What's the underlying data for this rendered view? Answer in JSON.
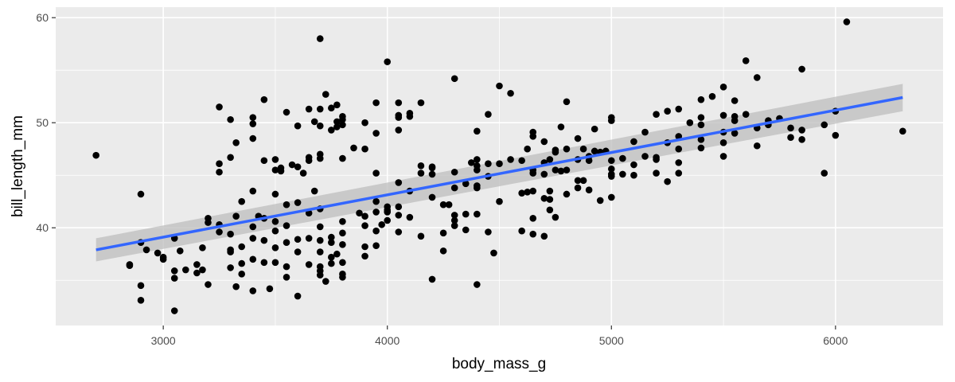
{
  "chart_data": {
    "type": "scatter",
    "title": "",
    "xlabel": "body_mass_g",
    "ylabel": "bill_length_mm",
    "xlim": [
      2520,
      6480
    ],
    "ylim": [
      30.7,
      61.0
    ],
    "x_ticks": [
      3000,
      4000,
      5000,
      6000
    ],
    "y_ticks": [
      40,
      50,
      60
    ],
    "x_tick_labels": [
      "3000",
      "4000",
      "5000",
      "6000"
    ],
    "y_tick_labels": [
      "40",
      "50",
      "60"
    ],
    "grid": true,
    "legend": "none",
    "colors": {
      "panel_background": "#ebebeb",
      "grid": "#ffffff",
      "points": "#000000",
      "fit_line": "#3366ff",
      "confidence_band": "#bdbdbd"
    },
    "fit": {
      "method": "linear",
      "x": [
        2700,
        6300
      ],
      "y": [
        37.9,
        52.4
      ],
      "band_lower": [
        36.8,
        51.1
      ],
      "band_upper": [
        39.0,
        53.7
      ]
    },
    "points": [
      [
        2700,
        46.9
      ],
      [
        2850,
        36.5
      ],
      [
        2850,
        36.4
      ],
      [
        2900,
        43.2
      ],
      [
        2900,
        38.6
      ],
      [
        2900,
        34.5
      ],
      [
        2900,
        33.1
      ],
      [
        2925,
        37.9
      ],
      [
        2975,
        37.6
      ],
      [
        3000,
        37.2
      ],
      [
        3000,
        37.0
      ],
      [
        3050,
        39.0
      ],
      [
        3050,
        35.9
      ],
      [
        3050,
        35.2
      ],
      [
        3050,
        32.1
      ],
      [
        3075,
        37.8
      ],
      [
        3100,
        36.0
      ],
      [
        3150,
        36.5
      ],
      [
        3150,
        35.7
      ],
      [
        3175,
        38.1
      ],
      [
        3175,
        36.0
      ],
      [
        3200,
        40.9
      ],
      [
        3200,
        40.5
      ],
      [
        3200,
        34.6
      ],
      [
        3250,
        51.5
      ],
      [
        3250,
        46.1
      ],
      [
        3250,
        45.3
      ],
      [
        3250,
        40.3
      ],
      [
        3250,
        39.6
      ],
      [
        3300,
        50.3
      ],
      [
        3300,
        46.7
      ],
      [
        3300,
        39.4
      ],
      [
        3300,
        37.7
      ],
      [
        3300,
        36.2
      ],
      [
        3300,
        37.9
      ],
      [
        3325,
        48.1
      ],
      [
        3325,
        41.1
      ],
      [
        3325,
        34.4
      ],
      [
        3350,
        42.5
      ],
      [
        3350,
        38.2
      ],
      [
        3350,
        35.6
      ],
      [
        3350,
        36.6
      ],
      [
        3400,
        50.5
      ],
      [
        3400,
        49.9
      ],
      [
        3400,
        48.5
      ],
      [
        3400,
        43.5
      ],
      [
        3400,
        40.1
      ],
      [
        3400,
        39.0
      ],
      [
        3400,
        37.0
      ],
      [
        3400,
        34.0
      ],
      [
        3425,
        41.1
      ],
      [
        3450,
        52.2
      ],
      [
        3450,
        46.4
      ],
      [
        3450,
        40.9
      ],
      [
        3450,
        38.8
      ],
      [
        3450,
        36.7
      ],
      [
        3475,
        34.2
      ],
      [
        3500,
        46.5
      ],
      [
        3500,
        45.5
      ],
      [
        3500,
        43.2
      ],
      [
        3500,
        40.6
      ],
      [
        3500,
        39.7
      ],
      [
        3500,
        38.1
      ],
      [
        3500,
        36.7
      ],
      [
        3525,
        45.4
      ],
      [
        3525,
        45.7
      ],
      [
        3550,
        51.0
      ],
      [
        3550,
        42.2
      ],
      [
        3550,
        40.2
      ],
      [
        3550,
        38.6
      ],
      [
        3550,
        36.3
      ],
      [
        3550,
        35.3
      ],
      [
        3575,
        46.0
      ],
      [
        3600,
        49.7
      ],
      [
        3600,
        45.8
      ],
      [
        3600,
        42.4
      ],
      [
        3600,
        38.9
      ],
      [
        3600,
        37.7
      ],
      [
        3600,
        33.5
      ],
      [
        3625,
        45.2
      ],
      [
        3650,
        51.3
      ],
      [
        3650,
        46.7
      ],
      [
        3650,
        46.4
      ],
      [
        3650,
        41.4
      ],
      [
        3650,
        39.0
      ],
      [
        3650,
        36.5
      ],
      [
        3675,
        50.1
      ],
      [
        3675,
        43.5
      ],
      [
        3700,
        58.0
      ],
      [
        3700,
        51.3
      ],
      [
        3700,
        49.7
      ],
      [
        3700,
        47.0
      ],
      [
        3700,
        46.6
      ],
      [
        3700,
        41.8
      ],
      [
        3700,
        40.1
      ],
      [
        3700,
        38.8
      ],
      [
        3700,
        37.7
      ],
      [
        3700,
        36.3
      ],
      [
        3700,
        35.9
      ],
      [
        3700,
        35.5
      ],
      [
        3725,
        52.7
      ],
      [
        3725,
        34.9
      ],
      [
        3750,
        51.4
      ],
      [
        3750,
        49.3
      ],
      [
        3750,
        39.1
      ],
      [
        3750,
        38.6
      ],
      [
        3750,
        37.2
      ],
      [
        3750,
        36.6
      ],
      [
        3775,
        51.7
      ],
      [
        3775,
        49.6
      ],
      [
        3775,
        50.1
      ],
      [
        3775,
        37.5
      ],
      [
        3800,
        50.3
      ],
      [
        3800,
        50.6
      ],
      [
        3800,
        49.8
      ],
      [
        3800,
        46.6
      ],
      [
        3800,
        40.6
      ],
      [
        3800,
        39.5
      ],
      [
        3800,
        38.4
      ],
      [
        3800,
        36.7
      ],
      [
        3800,
        35.6
      ],
      [
        3800,
        35.3
      ],
      [
        3850,
        47.6
      ],
      [
        3875,
        41.4
      ],
      [
        3900,
        50.0
      ],
      [
        3900,
        47.5
      ],
      [
        3900,
        41.1
      ],
      [
        3900,
        40.2
      ],
      [
        3900,
        38.2
      ],
      [
        3900,
        37.3
      ],
      [
        3950,
        51.9
      ],
      [
        3950,
        49.0
      ],
      [
        3950,
        45.2
      ],
      [
        3950,
        42.5
      ],
      [
        3950,
        41.5
      ],
      [
        3950,
        39.7
      ],
      [
        3950,
        38.3
      ],
      [
        3975,
        40.3
      ],
      [
        4000,
        55.8
      ],
      [
        4000,
        42.0
      ],
      [
        4000,
        41.7
      ],
      [
        4000,
        41.5
      ],
      [
        4000,
        40.7
      ],
      [
        4050,
        51.9
      ],
      [
        4050,
        50.7
      ],
      [
        4050,
        50.5
      ],
      [
        4050,
        49.3
      ],
      [
        4050,
        44.3
      ],
      [
        4050,
        42.0
      ],
      [
        4050,
        41.2
      ],
      [
        4050,
        39.6
      ],
      [
        4100,
        50.9
      ],
      [
        4100,
        50.6
      ],
      [
        4100,
        43.5
      ],
      [
        4100,
        41.0
      ],
      [
        4150,
        51.9
      ],
      [
        4150,
        45.9
      ],
      [
        4150,
        45.2
      ],
      [
        4150,
        39.2
      ],
      [
        4200,
        45.8
      ],
      [
        4200,
        45.7
      ],
      [
        4200,
        45.1
      ],
      [
        4200,
        42.9
      ],
      [
        4200,
        35.1
      ],
      [
        4250,
        42.2
      ],
      [
        4250,
        39.5
      ],
      [
        4250,
        37.8
      ],
      [
        4275,
        42.2
      ],
      [
        4300,
        54.2
      ],
      [
        4300,
        45.3
      ],
      [
        4300,
        43.8
      ],
      [
        4300,
        41.2
      ],
      [
        4300,
        40.7
      ],
      [
        4300,
        40.2
      ],
      [
        4350,
        44.2
      ],
      [
        4350,
        41.3
      ],
      [
        4350,
        39.8
      ],
      [
        4375,
        46.2
      ],
      [
        4400,
        49.2
      ],
      [
        4400,
        46.5
      ],
      [
        4400,
        45.9
      ],
      [
        4400,
        45.5
      ],
      [
        4400,
        44.0
      ],
      [
        4400,
        43.8
      ],
      [
        4400,
        41.3
      ],
      [
        4400,
        34.6
      ],
      [
        4450,
        50.8
      ],
      [
        4450,
        46.1
      ],
      [
        4450,
        44.9
      ],
      [
        4450,
        39.6
      ],
      [
        4475,
        37.6
      ],
      [
        4500,
        53.5
      ],
      [
        4500,
        46.1
      ],
      [
        4500,
        42.5
      ],
      [
        4550,
        52.8
      ],
      [
        4550,
        46.5
      ],
      [
        4600,
        46.4
      ],
      [
        4600,
        43.3
      ],
      [
        4600,
        39.7
      ],
      [
        4625,
        47.5
      ],
      [
        4625,
        43.4
      ],
      [
        4650,
        49.1
      ],
      [
        4650,
        48.7
      ],
      [
        4650,
        45.5
      ],
      [
        4650,
        45.2
      ],
      [
        4650,
        43.5
      ],
      [
        4650,
        40.9
      ],
      [
        4650,
        39.4
      ],
      [
        4700,
        48.2
      ],
      [
        4700,
        46.2
      ],
      [
        4700,
        45.1
      ],
      [
        4700,
        42.8
      ],
      [
        4700,
        39.2
      ],
      [
        4725,
        46.5
      ],
      [
        4725,
        43.5
      ],
      [
        4725,
        42.7
      ],
      [
        4725,
        41.7
      ],
      [
        4750,
        47.4
      ],
      [
        4750,
        47.2
      ],
      [
        4750,
        45.5
      ],
      [
        4750,
        41.0
      ],
      [
        4775,
        49.6
      ],
      [
        4775,
        45.4
      ],
      [
        4800,
        52.0
      ],
      [
        4800,
        47.5
      ],
      [
        4800,
        45.5
      ],
      [
        4800,
        43.2
      ],
      [
        4850,
        48.5
      ],
      [
        4850,
        46.5
      ],
      [
        4850,
        44.5
      ],
      [
        4850,
        43.8
      ],
      [
        4875,
        47.5
      ],
      [
        4875,
        44.5
      ],
      [
        4900,
        46.8
      ],
      [
        4900,
        46.4
      ],
      [
        4900,
        43.6
      ],
      [
        4925,
        49.4
      ],
      [
        4925,
        47.3
      ],
      [
        4950,
        47.2
      ],
      [
        4950,
        42.6
      ],
      [
        4975,
        47.3
      ],
      [
        5000,
        50.5
      ],
      [
        5000,
        50.2
      ],
      [
        5000,
        46.4
      ],
      [
        5000,
        45.6
      ],
      [
        5000,
        45.1
      ],
      [
        5000,
        44.9
      ],
      [
        5000,
        42.9
      ],
      [
        5050,
        46.6
      ],
      [
        5050,
        45.1
      ],
      [
        5100,
        48.2
      ],
      [
        5100,
        46.0
      ],
      [
        5100,
        45.0
      ],
      [
        5150,
        49.1
      ],
      [
        5150,
        46.8
      ],
      [
        5200,
        50.8
      ],
      [
        5200,
        46.7
      ],
      [
        5200,
        46.5
      ],
      [
        5200,
        45.2
      ],
      [
        5250,
        51.1
      ],
      [
        5250,
        48.1
      ],
      [
        5250,
        44.4
      ],
      [
        5300,
        51.3
      ],
      [
        5300,
        48.7
      ],
      [
        5300,
        47.5
      ],
      [
        5300,
        46.2
      ],
      [
        5300,
        45.2
      ],
      [
        5350,
        50.0
      ],
      [
        5400,
        52.2
      ],
      [
        5400,
        50.5
      ],
      [
        5400,
        49.8
      ],
      [
        5400,
        48.4
      ],
      [
        5400,
        47.6
      ],
      [
        5450,
        52.5
      ],
      [
        5500,
        53.4
      ],
      [
        5500,
        50.7
      ],
      [
        5500,
        49.1
      ],
      [
        5500,
        48.1
      ],
      [
        5500,
        46.8
      ],
      [
        5550,
        52.1
      ],
      [
        5550,
        50.6
      ],
      [
        5550,
        50.2
      ],
      [
        5550,
        49.0
      ],
      [
        5600,
        55.9
      ],
      [
        5600,
        50.8
      ],
      [
        5650,
        54.3
      ],
      [
        5650,
        49.5
      ],
      [
        5650,
        47.8
      ],
      [
        5700,
        50.2
      ],
      [
        5700,
        49.8
      ],
      [
        5750,
        50.4
      ],
      [
        5800,
        49.5
      ],
      [
        5800,
        48.6
      ],
      [
        5850,
        55.1
      ],
      [
        5850,
        49.3
      ],
      [
        5850,
        48.4
      ],
      [
        5950,
        49.8
      ],
      [
        5950,
        45.2
      ],
      [
        6000,
        51.1
      ],
      [
        6000,
        48.8
      ],
      [
        6050,
        59.6
      ],
      [
        6300,
        49.2
      ]
    ]
  }
}
